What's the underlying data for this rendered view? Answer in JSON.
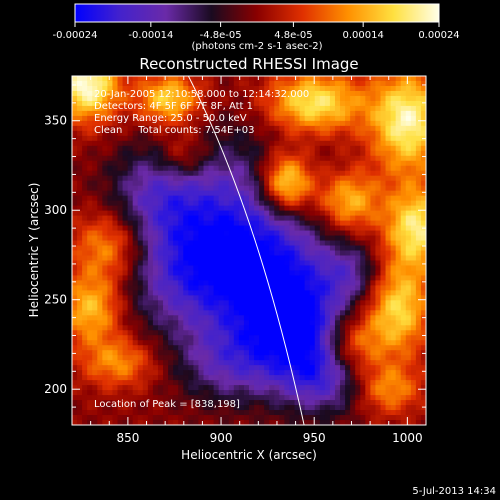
{
  "chart_data": {
    "type": "heatmap",
    "title": "Reconstructed RHESSI Image",
    "xlabel": "Heliocentric X (arcsec)",
    "ylabel": "Heliocentric Y (arcsec)",
    "xlim": [
      820,
      1010
    ],
    "ylim": [
      180,
      375
    ],
    "xticks": [
      850,
      900,
      950,
      1000
    ],
    "yticks": [
      200,
      250,
      300,
      350
    ],
    "x_tick_labels": [
      "850",
      "900",
      "950",
      "1000"
    ],
    "y_tick_labels": [
      "200",
      "250",
      "300",
      "350"
    ],
    "colorbar": {
      "min": -0.00024,
      "max": 0.00024,
      "ticks": [
        -0.00024,
        -0.00014,
        -4.8e-05,
        4.8e-05,
        0.00014,
        0.00024
      ],
      "tick_labels": [
        "-0.00024",
        "-0.00014",
        "-4.8e-05",
        "4.8e-05",
        "0.00014",
        "0.00024"
      ],
      "unit_label": "(photons cm-2 s-1 asec-2)",
      "stops": [
        "#0000ff",
        "#4422cc",
        "#6a2aa8",
        "#1a0a20",
        "#8a0000",
        "#e03000",
        "#ff9000",
        "#ffe040",
        "#ffffe8"
      ]
    },
    "annotations": [
      "20-Jan-2005 12:10:58.000 to 12:14:32.000",
      "Detectors: 4F 5F 6F 7F 8F, Att 1",
      "Energy Range: 25.0 - 50.0 keV",
      "Clean     Total counts: 7.54E+03"
    ],
    "peak_text": "Location of Peak = [838,198]",
    "peak": [
      838,
      198
    ],
    "limb_curve": [
      [
        945,
        178
      ],
      [
        930,
        250
      ],
      [
        910,
        320
      ],
      [
        880,
        380
      ]
    ],
    "blobs": [
      {
        "x": 828,
        "y": 370,
        "v": 0.00024,
        "sx": 12,
        "sy": 14
      },
      {
        "x": 872,
        "y": 362,
        "v": 0.00018,
        "sx": 12,
        "sy": 10
      },
      {
        "x": 950,
        "y": 360,
        "v": 0.0002,
        "sx": 18,
        "sy": 12
      },
      {
        "x": 1000,
        "y": 350,
        "v": 0.00022,
        "sx": 14,
        "sy": 20
      },
      {
        "x": 935,
        "y": 315,
        "v": 0.00024,
        "sx": 10,
        "sy": 12
      },
      {
        "x": 968,
        "y": 305,
        "v": 0.00016,
        "sx": 12,
        "sy": 12
      },
      {
        "x": 1005,
        "y": 290,
        "v": 0.0002,
        "sx": 12,
        "sy": 16
      },
      {
        "x": 995,
        "y": 245,
        "v": 0.00018,
        "sx": 12,
        "sy": 18
      },
      {
        "x": 840,
        "y": 280,
        "v": 0.00014,
        "sx": 14,
        "sy": 14
      },
      {
        "x": 830,
        "y": 245,
        "v": 0.00016,
        "sx": 12,
        "sy": 14
      },
      {
        "x": 845,
        "y": 215,
        "v": 0.00012,
        "sx": 14,
        "sy": 10
      },
      {
        "x": 970,
        "y": 225,
        "v": 0.00014,
        "sx": 12,
        "sy": 12
      },
      {
        "x": 990,
        "y": 200,
        "v": 0.00012,
        "sx": 12,
        "sy": 10
      },
      {
        "x": 880,
        "y": 330,
        "v": 0.0001,
        "sx": 10,
        "sy": 10
      },
      {
        "x": 905,
        "y": 300,
        "v": -0.00014,
        "sx": 30,
        "sy": 30
      },
      {
        "x": 885,
        "y": 265,
        "v": -0.00016,
        "sx": 26,
        "sy": 24
      },
      {
        "x": 930,
        "y": 255,
        "v": -0.00018,
        "sx": 22,
        "sy": 26
      },
      {
        "x": 945,
        "y": 230,
        "v": -0.00016,
        "sx": 18,
        "sy": 20
      },
      {
        "x": 955,
        "y": 205,
        "v": -0.00012,
        "sx": 16,
        "sy": 14
      },
      {
        "x": 905,
        "y": 215,
        "v": -0.00012,
        "sx": 20,
        "sy": 16
      },
      {
        "x": 865,
        "y": 310,
        "v": -0.0001,
        "sx": 18,
        "sy": 18
      },
      {
        "x": 970,
        "y": 265,
        "v": -0.0001,
        "sx": 12,
        "sy": 12
      }
    ]
  },
  "footer": {
    "timestamp": "5-Jul-2013 14:34"
  }
}
